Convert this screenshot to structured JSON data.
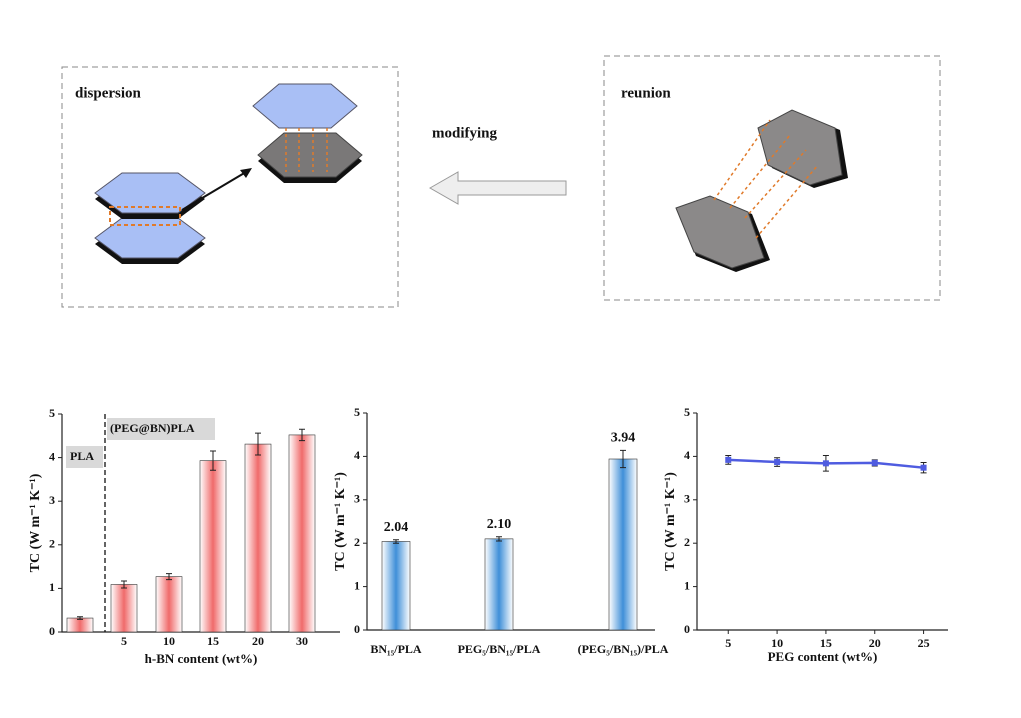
{
  "diagram": {
    "left_label": "dispersion",
    "middle_label": "modifying",
    "right_label": "reunion"
  },
  "chart_data": [
    {
      "type": "bar",
      "categories": [
        null,
        "5",
        "10",
        "15",
        "20",
        "30"
      ],
      "values": [
        0.32,
        1.09,
        1.27,
        3.93,
        4.31,
        4.52
      ],
      "errors": [
        0.03,
        0.08,
        0.07,
        0.22,
        0.25,
        0.13
      ],
      "color": "#f06a6a",
      "ylim": [
        0,
        5
      ],
      "yticks": [
        0,
        1,
        2,
        3,
        4,
        5
      ],
      "xlabel": "h-BN content (wt%)",
      "ylabel": "TC (W m⁻¹ K⁻¹)",
      "annotations": [
        "PLA",
        "(PEG@BN)PLA"
      ]
    },
    {
      "type": "bar",
      "categories": [
        "BN₁₅/PLA",
        "PEG₅/BN₁₅/PLA",
        "(PEG₅/BN₁₅)/PLA"
      ],
      "values": [
        2.04,
        2.1,
        3.94
      ],
      "value_labels": [
        "2.04",
        "2.10",
        "3.94"
      ],
      "errors": [
        0.04,
        0.05,
        0.2
      ],
      "color": "#3f8fd8",
      "ylim": [
        0,
        5
      ],
      "yticks": [
        0,
        1,
        2,
        3,
        4,
        5
      ],
      "ylabel": "TC (W m⁻¹ K⁻¹)"
    },
    {
      "type": "line",
      "x": [
        5,
        10,
        15,
        20,
        25
      ],
      "values": [
        3.92,
        3.87,
        3.84,
        3.85,
        3.74
      ],
      "errors": [
        0.1,
        0.1,
        0.18,
        0.07,
        0.12
      ],
      "color": "#4f5ce0",
      "xlim": [
        1.8,
        27.5
      ],
      "xticks": [
        5,
        10,
        15,
        20,
        25
      ],
      "ylim": [
        0,
        5
      ],
      "yticks": [
        0,
        1,
        2,
        3,
        4,
        5
      ],
      "xlabel": "PEG content (wt%)",
      "ylabel": "TC (W m⁻¹ K⁻¹)"
    }
  ]
}
